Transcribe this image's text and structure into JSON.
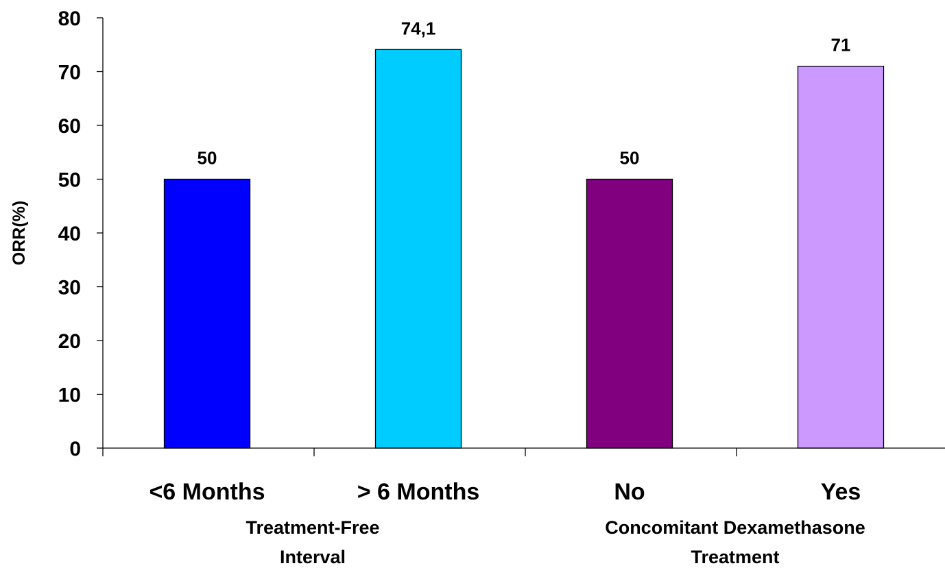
{
  "chart_data": {
    "type": "bar",
    "categories": [
      "<6 Months",
      "> 6 Months",
      "No",
      "Yes"
    ],
    "values": [
      50,
      74.1,
      50,
      71
    ],
    "value_labels": [
      "50",
      "74,1",
      "50",
      "71"
    ],
    "bar_colors": [
      "#0000ff",
      "#00ccff",
      "#800080",
      "#cc99ff"
    ],
    "ylabel": "ORR(%)",
    "xlabel": "",
    "ylim": [
      0,
      80
    ],
    "yticks": [
      0,
      10,
      20,
      30,
      40,
      50,
      60,
      70,
      80
    ],
    "grid": false,
    "groups": [
      {
        "label_lines": [
          "Treatment-Free",
          "Interval"
        ],
        "categories": [
          0,
          1
        ]
      },
      {
        "label_lines": [
          "Concomitant Dexamethasone",
          "Treatment"
        ],
        "categories": [
          2,
          3
        ]
      }
    ]
  }
}
